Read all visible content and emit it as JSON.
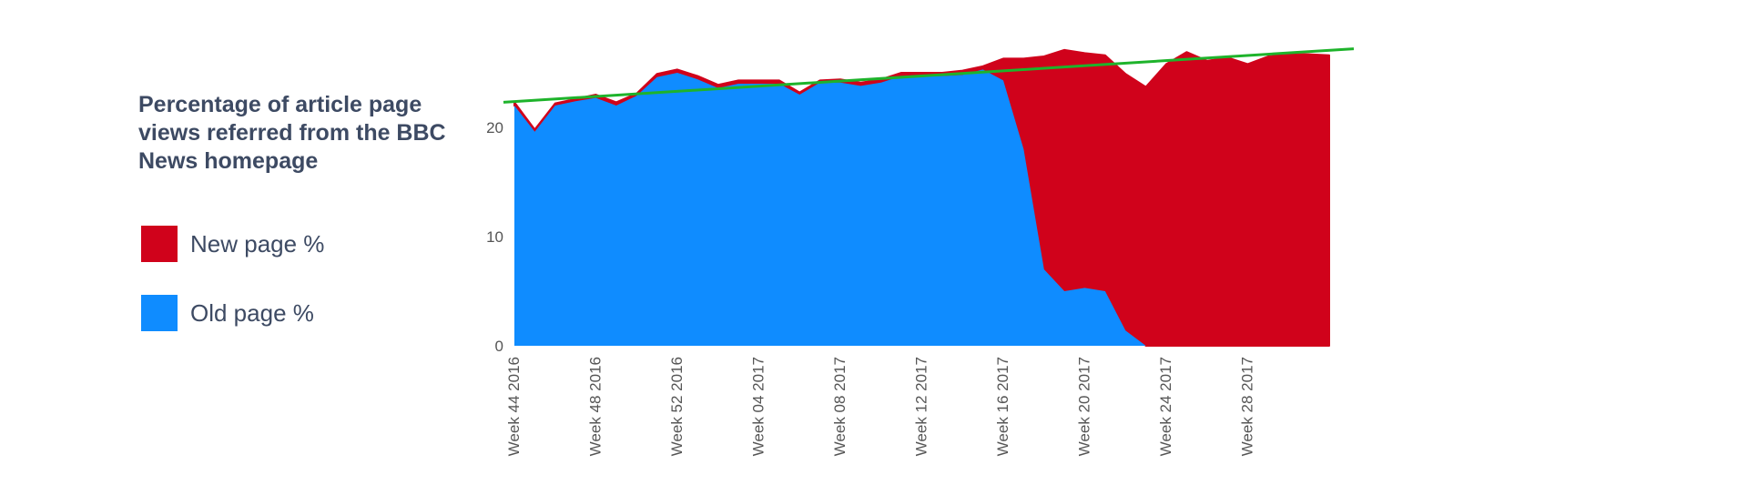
{
  "chart_data": {
    "type": "area",
    "title": "Percentage of article page views referred from the BBC News homepage",
    "xlabel": "",
    "ylabel": "",
    "ylim": [
      0,
      25
    ],
    "yticks": [
      0,
      10,
      20
    ],
    "stacked": true,
    "weeks": [
      "Week 44 2016",
      "Week 45 2016",
      "Week 46 2016",
      "Week 47 2016",
      "Week 48 2016",
      "Week 49 2016",
      "Week 50 2016",
      "Week 51 2016",
      "Week 52 2016",
      "Week 01 2017",
      "Week 02 2017",
      "Week 03 2017",
      "Week 04 2017",
      "Week 05 2017",
      "Week 06 2017",
      "Week 07 2017",
      "Week 08 2017",
      "Week 09 2017",
      "Week 10 2017",
      "Week 11 2017",
      "Week 12 2017",
      "Week 13 2017",
      "Week 14 2017",
      "Week 15 2017",
      "Week 16 2017",
      "Week 17 2017",
      "Week 18 2017",
      "Week 19 2017",
      "Week 20 2017",
      "Week 21 2017",
      "Week 22 2017",
      "Week 23 2017",
      "Week 24 2017",
      "Week 25 2017",
      "Week 26 2017",
      "Week 27 2017",
      "Week 28 2017",
      "Week 29 2017",
      "Week 30 2017",
      "Week 31 2017",
      "Week 32 2017"
    ],
    "x_tick_labels": [
      "Week 44 2016",
      "Week 48 2016",
      "Week 52 2016",
      "Week 04 2017",
      "Week 08 2017",
      "Week 12 2017",
      "Week 16 2017",
      "Week 20 2017",
      "Week 24 2017",
      "Week 28 2017"
    ],
    "series": [
      {
        "name": "New page %",
        "color": "#d0021b",
        "values": [
          0.3,
          0.2,
          0.2,
          0.2,
          0.3,
          0.3,
          0.2,
          0.3,
          0.3,
          0.3,
          0.3,
          0.3,
          0.3,
          0.3,
          0.2,
          0.2,
          0.3,
          0.3,
          0.3,
          0.3,
          0.3,
          0.3,
          0.4,
          0.3,
          2.0,
          8.3,
          19.5,
          22.1,
          21.5,
          21.6,
          23.5,
          23.7,
          25.8,
          26.9,
          26.1,
          26.4,
          25.8,
          26.5,
          26.7,
          26.7,
          26.6
        ]
      },
      {
        "name": "Old page %",
        "color": "#0f8cff",
        "values": [
          22.0,
          19.6,
          22.0,
          22.4,
          22.7,
          22.0,
          22.9,
          24.6,
          25.0,
          24.4,
          23.6,
          24.0,
          24.0,
          24.0,
          23.0,
          24.1,
          24.1,
          23.8,
          24.1,
          24.7,
          24.7,
          24.7,
          24.8,
          25.3,
          24.3,
          18.0,
          7.0,
          5.0,
          5.3,
          5.0,
          1.4,
          0.0,
          0.0,
          0.0,
          0.0,
          0.0,
          0.0,
          0.0,
          0.0,
          0.0,
          0.0
        ]
      }
    ],
    "trend_line": {
      "color": "#1eb32b",
      "start": 22.3,
      "end": 27.2
    },
    "legend_position": "left",
    "grid": false
  }
}
